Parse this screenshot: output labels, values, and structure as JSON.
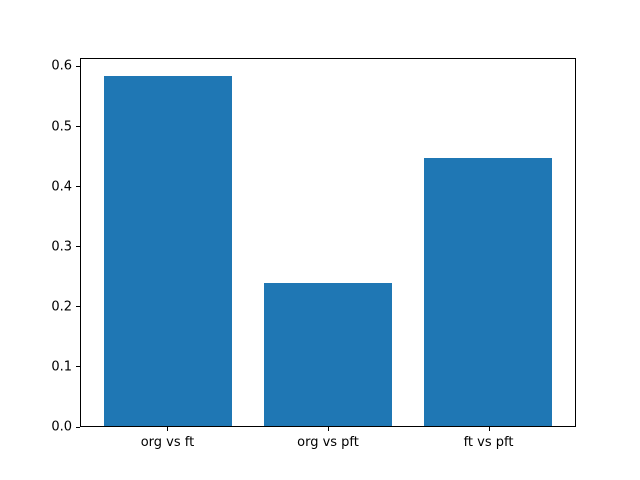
{
  "chart_data": {
    "type": "bar",
    "categories": [
      "org vs ft",
      "org vs pft",
      "ft vs pft"
    ],
    "values": [
      0.585,
      0.24,
      0.448
    ],
    "title": "",
    "xlabel": "",
    "ylabel": "",
    "ylim": [
      0,
      0.614
    ],
    "yticks": [
      0.0,
      0.1,
      0.2,
      0.3,
      0.4,
      0.5,
      0.6
    ],
    "ytick_labels": [
      "0.0",
      "0.1",
      "0.2",
      "0.3",
      "0.4",
      "0.5",
      "0.6"
    ],
    "bar_color": "#1f77b4",
    "axis_color": "#000000",
    "background_color": "#ffffff",
    "grid": false,
    "legend": null
  }
}
